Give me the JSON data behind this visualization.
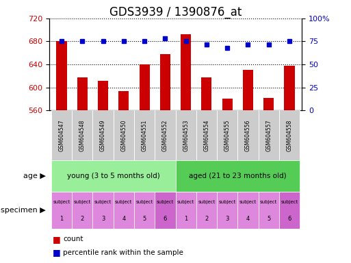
{
  "title": "GDS3939 / 1390876_at",
  "samples": [
    "GSM604547",
    "GSM604548",
    "GSM604549",
    "GSM604550",
    "GSM604551",
    "GSM604552",
    "GSM604553",
    "GSM604554",
    "GSM604555",
    "GSM604556",
    "GSM604557",
    "GSM604558"
  ],
  "counts": [
    681,
    618,
    612,
    594,
    640,
    658,
    692,
    618,
    581,
    630,
    582,
    638
  ],
  "percentiles": [
    75,
    75,
    75,
    75,
    75,
    78,
    75,
    72,
    68,
    72,
    72,
    75
  ],
  "ylim_left": [
    560,
    720
  ],
  "ylim_right": [
    0,
    100
  ],
  "yticks_left": [
    560,
    600,
    640,
    680,
    720
  ],
  "yticks_right": [
    0,
    25,
    50,
    75,
    100
  ],
  "bar_color": "#cc0000",
  "dot_color": "#0000cc",
  "age_groups": [
    {
      "label": "young (3 to 5 months old)",
      "start": 0,
      "end": 6,
      "color": "#99ee99"
    },
    {
      "label": "aged (21 to 23 months old)",
      "start": 6,
      "end": 12,
      "color": "#55cc55"
    }
  ],
  "sample_bg_color": "#cccccc",
  "specimen_colors_alt": [
    "#dd88dd",
    "#dd88dd",
    "#dd88dd",
    "#dd88dd",
    "#dd88dd",
    "#cc66cc",
    "#dd88dd",
    "#dd88dd",
    "#dd88dd",
    "#dd88dd",
    "#dd88dd",
    "#cc66cc"
  ],
  "specimen_labels_bottom": [
    "1",
    "2",
    "3",
    "4",
    "5",
    "6",
    "1",
    "2",
    "3",
    "4",
    "5",
    "6"
  ],
  "age_label": "age",
  "specimen_label": "specimen",
  "legend_count": "count",
  "legend_percentile": "percentile rank within the sample",
  "tick_label_color_left": "#cc0000",
  "tick_label_color_right": "#0000cc",
  "title_fontsize": 12,
  "bar_width": 0.5
}
